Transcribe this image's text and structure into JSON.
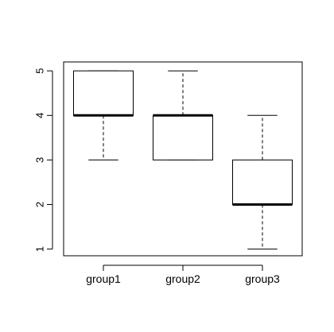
{
  "chart_data": {
    "type": "boxplot",
    "title": "",
    "xlabel": "",
    "ylabel": "",
    "categories": [
      "group1",
      "group2",
      "group3"
    ],
    "boxes": [
      {
        "name": "group1",
        "min": 3,
        "q1": 4,
        "median": 4,
        "q3": 5,
        "max": 5
      },
      {
        "name": "group2",
        "min": 3,
        "q1": 3,
        "median": 4,
        "q3": 4,
        "max": 5
      },
      {
        "name": "group3",
        "min": 1,
        "q1": 2,
        "median": 2,
        "q3": 3,
        "max": 4
      }
    ],
    "yticks": [
      1,
      2,
      3,
      4,
      5
    ],
    "ylim": [
      0.85,
      5.2
    ],
    "grid": false,
    "colors": {
      "box_stroke": "#000000",
      "box_fill": "#ffffff",
      "median": "#000000"
    }
  }
}
